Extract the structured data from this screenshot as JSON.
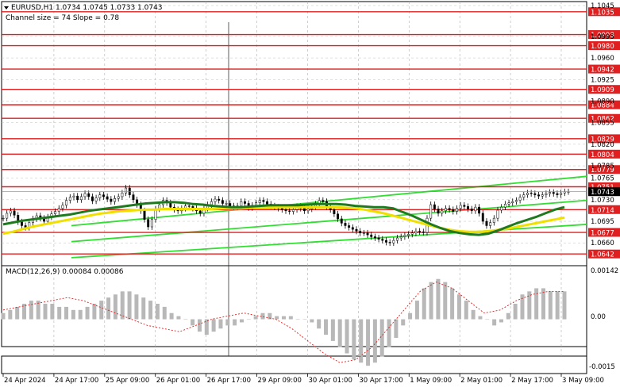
{
  "header": {
    "symbol_line": "EURUSD,H1  1.0734 1.0745 1.0733 1.0743",
    "channel_line": "Channel size = 74 Slope = 0.78"
  },
  "macd": {
    "label": "MACD(12,26,9) 0.00084 0.00086",
    "ticks": [
      "0.00142",
      "0.00",
      "-0.0015"
    ]
  },
  "chart_data": {
    "type": "candlestick",
    "symbol": "EURUSD",
    "timeframe": "H1",
    "ohlc_last": {
      "open": 1.0734,
      "high": 1.0745,
      "low": 1.0733,
      "close": 1.0743
    },
    "price_axis": {
      "ylim": [
        1.0632,
        1.1045
      ],
      "ticks": [
        1.1045,
        1.0995,
        1.096,
        1.0925,
        1.089,
        1.0855,
        1.082,
        1.0785,
        1.0765,
        1.073,
        1.0695,
        1.066
      ],
      "tick_labels": [
        "1.1045",
        "1.0995",
        "1.0960",
        "1.0925",
        "1.0890",
        "1.0855",
        "1.0820",
        "1.0785",
        "1.0765",
        "1.0730",
        "1.0695",
        "1.0660"
      ]
    },
    "levels": [
      1.1035,
      1.0998,
      1.098,
      1.0942,
      1.0909,
      1.0884,
      1.0862,
      1.0829,
      1.0804,
      1.0779,
      1.0751,
      1.0714,
      1.0677,
      1.0642
    ],
    "level_labels": [
      "1.1035",
      "1.0998",
      "1.0980",
      "1.0942",
      "1.0909",
      "1.0884",
      "1.0862",
      "1.0829",
      "1.0804",
      "1.0779",
      "1.0751",
      "1.0714",
      "1.0677",
      "1.0642"
    ],
    "current_price": 1.0743,
    "current_price_label": "1.0743",
    "x_labels": [
      "24 Apr 2024",
      "24 Apr 17:00",
      "25 Apr 09:00",
      "26 Apr 01:00",
      "26 Apr 17:00",
      "29 Apr 09:00",
      "30 Apr 01:00",
      "30 Apr 17:00",
      "1 May 09:00",
      "2 May 01:00",
      "2 May 17:00",
      "3 May 09:00"
    ],
    "n_bars": 176,
    "closes": [
      1.07,
      1.0708,
      1.0712,
      1.0705,
      1.0694,
      1.0688,
      1.0685,
      1.0693,
      1.0699,
      1.0704,
      1.07,
      1.0695,
      1.0702,
      1.0707,
      1.0711,
      1.0716,
      1.0721,
      1.0729,
      1.0734,
      1.0736,
      1.073,
      1.0735,
      1.074,
      1.0735,
      1.0728,
      1.0733,
      1.0738,
      1.0735,
      1.0731,
      1.0727,
      1.0732,
      1.0735,
      1.0741,
      1.0749,
      1.0738,
      1.073,
      1.0722,
      1.0712,
      1.0698,
      1.0686,
      1.0698,
      1.0715,
      1.0722,
      1.0729,
      1.0725,
      1.0718,
      1.0714,
      1.0712,
      1.0716,
      1.072,
      1.0719,
      1.0716,
      1.0712,
      1.0708,
      1.0716,
      1.0722,
      1.0727,
      1.0731,
      1.0729,
      1.0724,
      1.0724,
      1.072,
      1.0718,
      1.072,
      1.0727,
      1.0724,
      1.0717,
      1.0721,
      1.0725,
      1.0729,
      1.0727,
      1.0723,
      1.072,
      1.0718,
      1.0716,
      1.0714,
      1.0712,
      1.0711,
      1.0714,
      1.0719,
      1.0716,
      1.0712,
      1.0715,
      1.0719,
      1.0723,
      1.0729,
      1.0727,
      1.0719,
      1.0714,
      1.0707,
      1.0699,
      1.0692,
      1.0688,
      1.0685,
      1.0682,
      1.0679,
      1.0676,
      1.0676,
      1.0673,
      1.067,
      1.0668,
      1.0666,
      1.0664,
      1.0661,
      1.066,
      1.0664,
      1.0668,
      1.067,
      1.0672,
      1.0674,
      1.0676,
      1.0679,
      1.0678,
      1.0677,
      1.07,
      1.0722,
      1.0715,
      1.0708,
      1.0712,
      1.0716,
      1.0714,
      1.0711,
      1.0716,
      1.0721,
      1.0719,
      1.0715,
      1.0712,
      1.0718,
      1.0708,
      1.0695,
      1.0688,
      1.0693,
      1.07,
      1.0713,
      1.0718,
      1.0723,
      1.0725,
      1.0727,
      1.0729,
      1.0734,
      1.0738,
      1.0741,
      1.074,
      1.0738,
      1.0736,
      1.0738,
      1.074,
      1.0742,
      1.074,
      1.0738,
      1.0741,
      1.0743,
      1.0743
    ],
    "ma_fast": {
      "color": "#1f7a1f",
      "values": [
        1.069,
        1.0693,
        1.0696,
        1.0698,
        1.07,
        1.0702,
        1.0704,
        1.0706,
        1.0709,
        1.0712,
        1.0714,
        1.0716,
        1.0718,
        1.072,
        1.0722,
        1.0724,
        1.0725,
        1.0726,
        1.0726,
        1.0725,
        1.0723,
        1.0722,
        1.072,
        1.0719,
        1.0718,
        1.0718,
        1.0719,
        1.072,
        1.0721,
        1.0721,
        1.0721,
        1.0721,
        1.0722,
        1.0723,
        1.0723,
        1.0723,
        1.0722,
        1.072,
        1.0719,
        1.0718,
        1.0718,
        1.0716,
        1.071,
        1.0704,
        1.0697,
        1.069,
        1.0684,
        1.0679,
        1.0676,
        1.0674,
        1.0673,
        1.0675,
        1.068,
        1.0686,
        1.0692,
        1.0697,
        1.0702,
        1.0708,
        1.0714,
        1.0718
      ]
    },
    "ma_slow": {
      "color": "#f0e000",
      "values": [
        1.0675,
        1.0678,
        1.0682,
        1.0686,
        1.0689,
        1.0692,
        1.0695,
        1.0698,
        1.0701,
        1.0704,
        1.0707,
        1.0709,
        1.0711,
        1.0712,
        1.0713,
        1.0714,
        1.0714,
        1.0715,
        1.0715,
        1.0715,
        1.0715,
        1.0715,
        1.0715,
        1.0716,
        1.0716,
        1.0716,
        1.0717,
        1.0717,
        1.0717,
        1.0718,
        1.0718,
        1.0718,
        1.0718,
        1.0718,
        1.0718,
        1.0718,
        1.0717,
        1.0716,
        1.0714,
        1.0711,
        1.0708,
        1.0704,
        1.07,
        1.0696,
        1.0692,
        1.0688,
        1.0684,
        1.0681,
        1.0679,
        1.0678,
        1.0678,
        1.0679,
        1.0681,
        1.0683,
        1.0686,
        1.0689,
        1.0692,
        1.0695,
        1.0698,
        1.0701
      ]
    },
    "channel": {
      "color": "#33dd33",
      "upper": [
        1.0688,
        1.0768
      ],
      "lower": [
        1.0636,
        1.069
      ],
      "middle": [
        1.0662,
        1.0729
      ]
    },
    "macd_histogram": [
      0.0002,
      0.0003,
      0.0004,
      0.0005,
      0.0006,
      0.0006,
      0.0005,
      0.0005,
      0.0004,
      0.0004,
      0.0003,
      0.0003,
      0.0004,
      0.0005,
      0.0006,
      0.0007,
      0.0008,
      0.0009,
      0.0009,
      0.0008,
      0.0007,
      0.0006,
      0.0005,
      0.0004,
      0.0002,
      0.0001,
      0.0,
      -0.0002,
      -0.0004,
      -0.0005,
      -0.0004,
      -0.0003,
      -0.0002,
      -0.0002,
      -0.0001,
      0.0,
      0.0001,
      0.0002,
      0.0002,
      0.0001,
      0.0001,
      0.0001,
      0.0,
      0.0,
      -0.0001,
      -0.0003,
      -0.0005,
      -0.0007,
      -0.0009,
      -0.0011,
      -0.0013,
      -0.0014,
      -0.0015,
      -0.0014,
      -0.0012,
      -0.0009,
      -0.0006,
      -0.0002,
      0.0002,
      0.0006,
      0.001,
      0.0012,
      0.0013,
      0.0012,
      0.001,
      0.0008,
      0.0006,
      0.0003,
      0.0001,
      0.0,
      -0.0002,
      -0.0001,
      0.0002,
      0.0005,
      0.0008,
      0.0009,
      0.001,
      0.001,
      0.0009,
      0.0009,
      0.0009
    ],
    "macd_signal": [
      0.0003,
      0.0004,
      0.0005,
      0.0006,
      0.0007,
      0.0006,
      0.0004,
      0.0002,
      0.0,
      -0.0002,
      -0.0003,
      -0.0004,
      -0.0002,
      0.0,
      0.0001,
      0.0002,
      0.0001,
      0.0,
      -0.0003,
      -0.0007,
      -0.0011,
      -0.0014,
      -0.0013,
      -0.0009,
      -0.0003,
      0.0003,
      0.0009,
      0.0012,
      0.001,
      0.0006,
      0.0002,
      0.0003,
      0.0006,
      0.0008,
      0.0009,
      0.0009
    ],
    "macd_ylim": [
      -0.0017,
      0.0016
    ],
    "macd_ticks": [
      0.00142,
      0.0,
      -0.0015
    ]
  }
}
